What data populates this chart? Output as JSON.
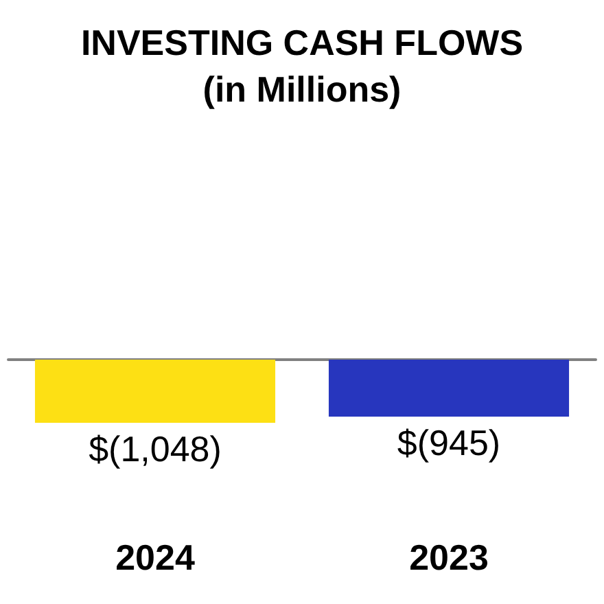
{
  "chart_data": {
    "type": "bar",
    "title": "INVESTING CASH FLOWS",
    "subtitle": "(in Millions)",
    "categories": [
      "2024",
      "2023"
    ],
    "values": [
      -1048,
      -945
    ],
    "colors": [
      "#fde014",
      "#2736be"
    ],
    "value_labels": [
      "$(1,048)",
      "$(945)"
    ],
    "tick_labels": "x"
  }
}
